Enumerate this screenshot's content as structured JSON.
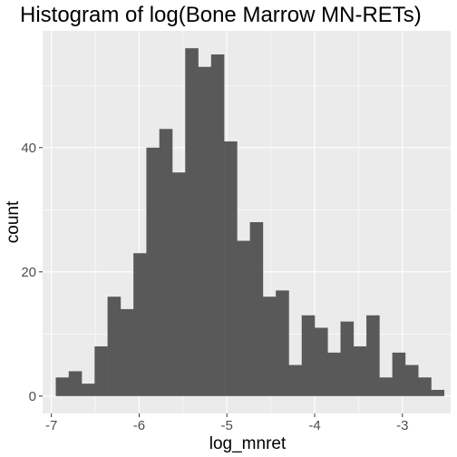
{
  "chart_data": {
    "type": "bar",
    "title": "Histogram of log(Bone Marrow MN-RETs)",
    "xlabel": "log_mnret",
    "ylabel": "count",
    "bin_start": -6.95,
    "bin_width": 0.1475,
    "counts": [
      3,
      4,
      2,
      8,
      16,
      14,
      23,
      40,
      43,
      36,
      56,
      53,
      55,
      41,
      25,
      28,
      16,
      17,
      5,
      13,
      11,
      7,
      12,
      8,
      13,
      3,
      7,
      5,
      3,
      1
    ],
    "xlim": [
      -7.1,
      -2.45
    ],
    "ylim": [
      -2.8,
      58.8
    ],
    "x_ticks": [
      -7,
      -6,
      -5,
      -4,
      -3
    ],
    "x_tick_labels": [
      "-7",
      "-6",
      "-5",
      "-4",
      "-3"
    ],
    "y_ticks": [
      0,
      20,
      40
    ],
    "y_tick_labels": [
      "0",
      "20",
      "40"
    ],
    "grid": true,
    "colors": {
      "panel_background": "#ebebeb",
      "grid_major": "#ffffff",
      "bar_fill": "#595959",
      "tick_text": "#4d4d4d"
    }
  }
}
